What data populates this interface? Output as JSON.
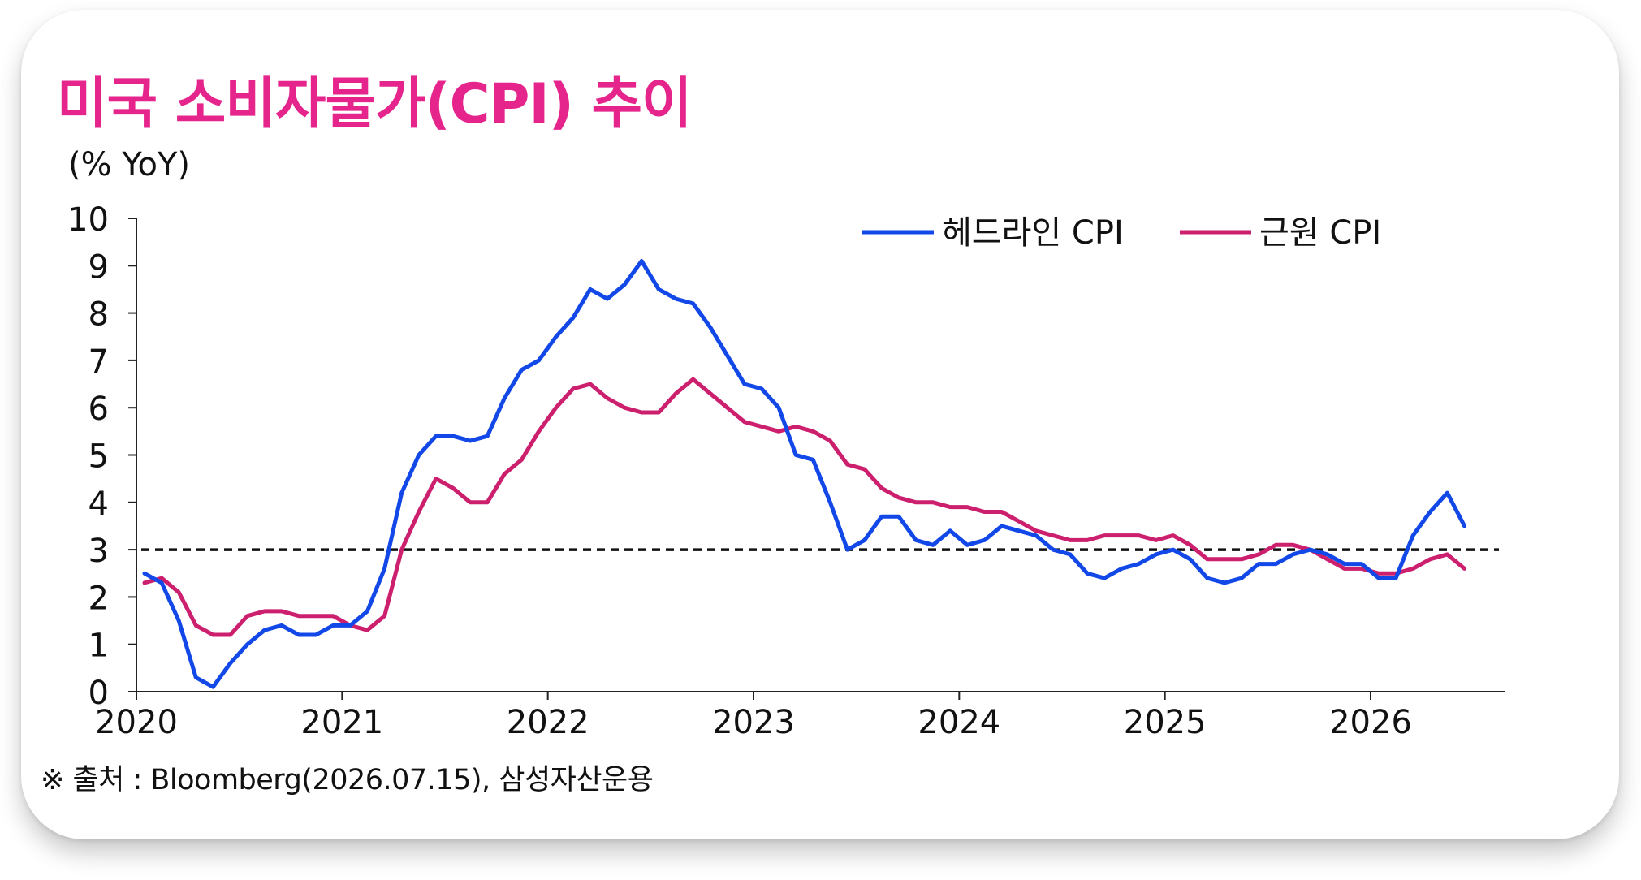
{
  "card": {
    "title": "미국 소비자물가(CPI) 추이",
    "source": "※ 출처 : Bloomberg(2026.07.15), 삼성자산운용"
  },
  "colors": {
    "title": "#e5258c",
    "headline": "#1247e8",
    "core": "#cc1f6e",
    "reference": "#111111"
  },
  "chart_data": {
    "type": "line",
    "title": "미국 소비자물가(CPI) 추이",
    "ylabel": "(% YoY)",
    "xlabel": "",
    "ylim": [
      0,
      10
    ],
    "yticks": [
      0,
      1,
      2,
      3,
      4,
      5,
      6,
      7,
      8,
      9,
      10
    ],
    "xlim": [
      2020,
      2026.66667
    ],
    "xticks": [
      "2020",
      "2021",
      "2022",
      "2023",
      "2024",
      "2025",
      "2026"
    ],
    "grid": false,
    "legend": "top-right",
    "reference_line": {
      "y": 3,
      "style": "dashed"
    },
    "x_start": "2020-01",
    "x_frequency": "monthly",
    "series": [
      {
        "name": "헤드라인 CPI",
        "color": "#1247e8",
        "values": [
          2.5,
          2.3,
          1.5,
          0.3,
          0.1,
          0.6,
          1.0,
          1.3,
          1.4,
          1.2,
          1.2,
          1.4,
          1.4,
          1.7,
          2.6,
          4.2,
          5.0,
          5.4,
          5.4,
          5.3,
          5.4,
          6.2,
          6.8,
          7.0,
          7.5,
          7.9,
          8.5,
          8.3,
          8.6,
          9.1,
          8.5,
          8.3,
          8.2,
          7.7,
          7.1,
          6.5,
          6.4,
          6.0,
          5.0,
          4.9,
          4.0,
          3.0,
          3.2,
          3.7,
          3.7,
          3.2,
          3.1,
          3.4,
          3.1,
          3.2,
          3.5,
          3.4,
          3.3,
          3.0,
          2.9,
          2.5,
          2.4,
          2.6,
          2.7,
          2.9,
          3.0,
          2.8,
          2.4,
          2.3,
          2.4,
          2.7,
          2.7,
          2.9,
          3.0,
          2.9,
          2.7,
          2.7,
          2.4,
          2.4,
          3.3,
          3.8,
          4.2,
          3.5
        ]
      },
      {
        "name": "근원 CPI",
        "color": "#cc1f6e",
        "values": [
          2.3,
          2.4,
          2.1,
          1.4,
          1.2,
          1.2,
          1.6,
          1.7,
          1.7,
          1.6,
          1.6,
          1.6,
          1.4,
          1.3,
          1.6,
          3.0,
          3.8,
          4.5,
          4.3,
          4.0,
          4.0,
          4.6,
          4.9,
          5.5,
          6.0,
          6.4,
          6.5,
          6.2,
          6.0,
          5.9,
          5.9,
          6.3,
          6.6,
          6.3,
          6.0,
          5.7,
          5.6,
          5.5,
          5.6,
          5.5,
          5.3,
          4.8,
          4.7,
          4.3,
          4.1,
          4.0,
          4.0,
          3.9,
          3.9,
          3.8,
          3.8,
          3.6,
          3.4,
          3.3,
          3.2,
          3.2,
          3.3,
          3.3,
          3.3,
          3.2,
          3.3,
          3.1,
          2.8,
          2.8,
          2.8,
          2.9,
          3.1,
          3.1,
          3.0,
          2.8,
          2.6,
          2.6,
          2.5,
          2.5,
          2.6,
          2.8,
          2.9,
          2.6
        ]
      }
    ]
  }
}
